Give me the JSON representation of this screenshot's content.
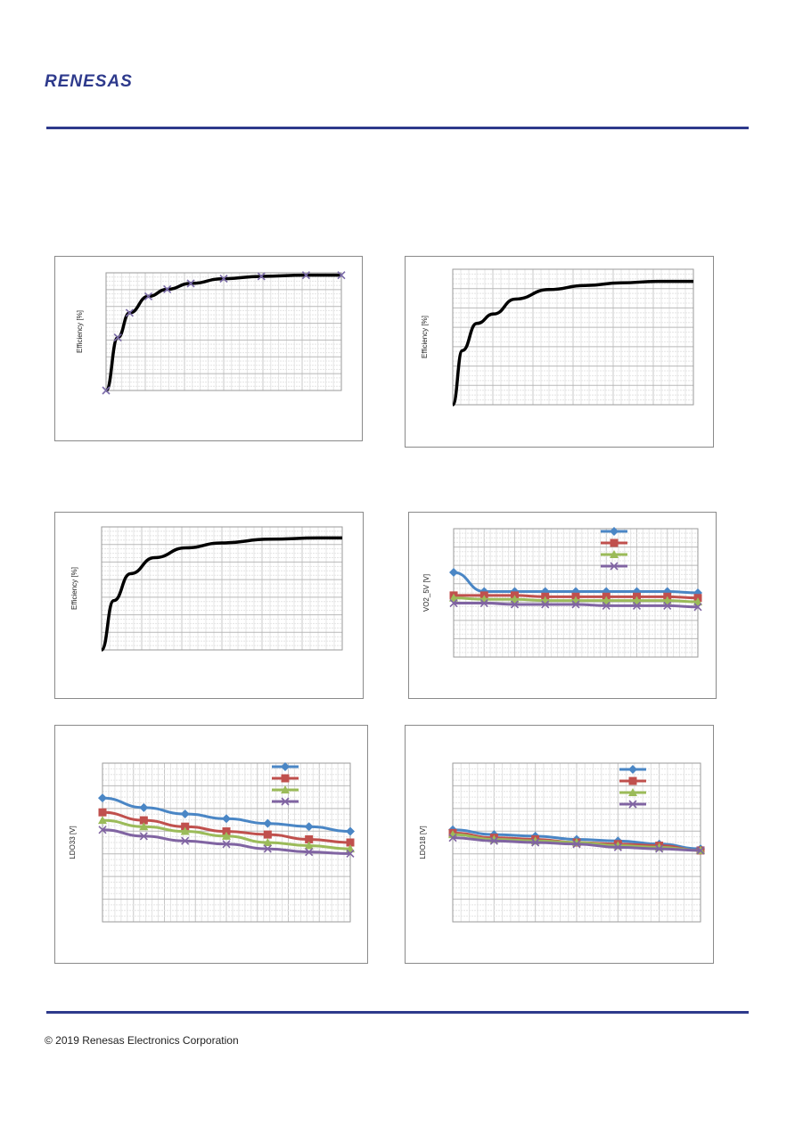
{
  "header": {
    "brand": "RENESAS"
  },
  "footer": {
    "copyright": "© 2019 Renesas Electronics Corporation"
  },
  "colors": {
    "rule": "#2e3a8c",
    "blue": "#4a86c5",
    "red": "#c0504d",
    "green": "#9bbb59",
    "purple": "#8064a2",
    "black": "#000000"
  },
  "charts": [
    {
      "chart_data": {
        "type": "line",
        "ylabel": "Efficiency [%]",
        "grid": true,
        "series": [
          {
            "color": "#000000",
            "marker": "x",
            "points": [
              [
                0,
                0
              ],
              [
                0.05,
                0.45
              ],
              [
                0.1,
                0.66
              ],
              [
                0.18,
                0.8
              ],
              [
                0.26,
                0.86
              ],
              [
                0.36,
                0.91
              ],
              [
                0.5,
                0.95
              ],
              [
                0.66,
                0.97
              ],
              [
                0.85,
                0.98
              ],
              [
                1,
                0.98
              ]
            ]
          }
        ]
      }
    },
    {
      "chart_data": {
        "type": "line",
        "ylabel": "Efficiency [%]",
        "grid": true,
        "series": [
          {
            "color": "#000000",
            "points": [
              [
                0,
                0
              ],
              [
                0.04,
                0.4
              ],
              [
                0.1,
                0.6
              ],
              [
                0.17,
                0.67
              ],
              [
                0.26,
                0.78
              ],
              [
                0.4,
                0.85
              ],
              [
                0.55,
                0.88
              ],
              [
                0.7,
                0.9
              ],
              [
                0.85,
                0.91
              ],
              [
                1,
                0.91
              ]
            ]
          }
        ]
      }
    },
    {
      "chart_data": {
        "type": "line",
        "ylabel": "Efficiency [%]",
        "grid": true,
        "series": [
          {
            "color": "#000000",
            "points": [
              [
                0,
                0
              ],
              [
                0.05,
                0.4
              ],
              [
                0.12,
                0.62
              ],
              [
                0.22,
                0.75
              ],
              [
                0.35,
                0.83
              ],
              [
                0.5,
                0.87
              ],
              [
                0.7,
                0.9
              ],
              [
                0.9,
                0.91
              ],
              [
                1,
                0.91
              ]
            ]
          }
        ]
      }
    },
    {
      "chart_data": {
        "type": "line",
        "ylabel": "VO2_5V [V]",
        "grid": true,
        "legend": "top-right",
        "series": [
          {
            "color": "#4a86c5",
            "marker": "diamond",
            "values": [
              0.66,
              0.51,
              0.51,
              0.51,
              0.51,
              0.51,
              0.51,
              0.51,
              0.5
            ]
          },
          {
            "color": "#c0504d",
            "marker": "square",
            "values": [
              0.48,
              0.48,
              0.48,
              0.47,
              0.47,
              0.47,
              0.47,
              0.47,
              0.46
            ]
          },
          {
            "color": "#9bbb59",
            "marker": "triangle",
            "values": [
              0.46,
              0.45,
              0.45,
              0.44,
              0.44,
              0.44,
              0.44,
              0.44,
              0.43
            ]
          },
          {
            "color": "#8064a2",
            "marker": "x",
            "values": [
              0.42,
              0.42,
              0.41,
              0.41,
              0.41,
              0.4,
              0.4,
              0.4,
              0.39
            ]
          }
        ]
      }
    },
    {
      "chart_data": {
        "type": "line",
        "ylabel": "LDO33 [V]",
        "grid": true,
        "legend": "top-right",
        "series": [
          {
            "color": "#4a86c5",
            "marker": "diamond",
            "values": [
              0.78,
              0.72,
              0.68,
              0.65,
              0.62,
              0.6,
              0.57
            ]
          },
          {
            "color": "#c0504d",
            "marker": "square",
            "values": [
              0.69,
              0.64,
              0.6,
              0.57,
              0.55,
              0.52,
              0.5
            ]
          },
          {
            "color": "#9bbb59",
            "marker": "triangle",
            "values": [
              0.64,
              0.6,
              0.57,
              0.54,
              0.5,
              0.48,
              0.46
            ]
          },
          {
            "color": "#8064a2",
            "marker": "x",
            "values": [
              0.58,
              0.54,
              0.51,
              0.49,
              0.46,
              0.44,
              0.43
            ]
          }
        ]
      }
    },
    {
      "chart_data": {
        "type": "line",
        "ylabel": "LDO18 [V]",
        "grid": true,
        "legend": "top-right",
        "series": [
          {
            "color": "#4a86c5",
            "marker": "diamond",
            "values": [
              0.58,
              0.55,
              0.54,
              0.52,
              0.51,
              0.49,
              0.46
            ]
          },
          {
            "color": "#c0504d",
            "marker": "square",
            "values": [
              0.56,
              0.53,
              0.52,
              0.5,
              0.49,
              0.48,
              0.45
            ]
          },
          {
            "color": "#9bbb59",
            "marker": "triangle",
            "values": [
              0.55,
              0.52,
              0.51,
              0.5,
              0.48,
              0.47,
              0.45
            ]
          },
          {
            "color": "#8064a2",
            "marker": "x",
            "values": [
              0.53,
              0.51,
              0.5,
              0.49,
              0.47,
              0.46,
              0.45
            ]
          }
        ]
      }
    }
  ]
}
